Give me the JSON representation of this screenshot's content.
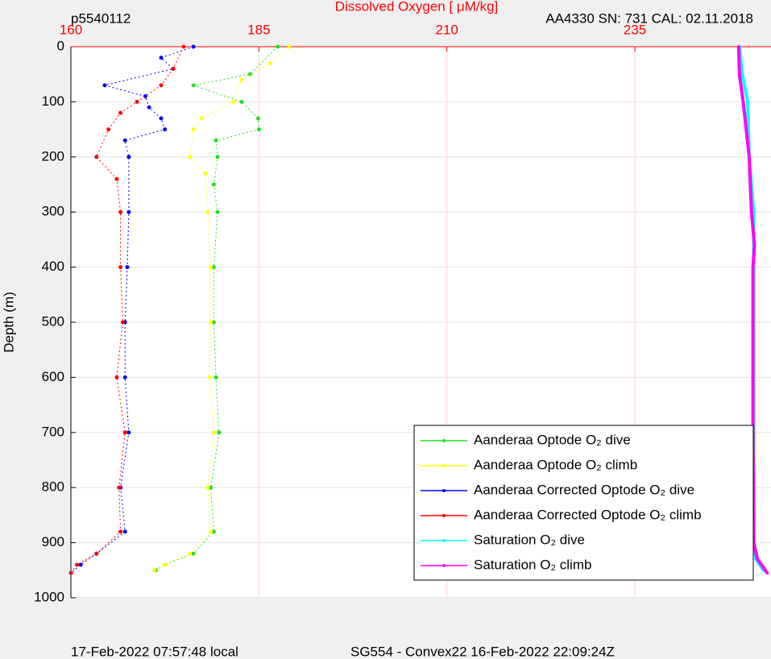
{
  "chart_data": {
    "type": "scatter",
    "title": "Dissolved Oxygen [   μM/kg]",
    "top_left_text": "p5540112",
    "top_right_text": "AA4330   SN: 731  CAL: 02.11.2018",
    "bottom_left_text": "17-Feb-2022 07:57:48 local",
    "bottom_right_text": "SG554 - Convex22 16-Feb-2022 22:09:24Z",
    "y_label": "Depth (m)",
    "xlim": [
      160,
      253.1
    ],
    "xticks": [
      160,
      185,
      210,
      235
    ],
    "ylim": [
      0,
      1000
    ],
    "yticks": [
      0,
      100,
      200,
      300,
      400,
      500,
      600,
      700,
      800,
      900,
      1000
    ],
    "y_reversed": true,
    "grid": true,
    "series": [
      {
        "name": "Aanderaa Optode O₂ dive",
        "color": "#1ee01e",
        "x": [
          187.5,
          183.8,
          176.3,
          182.7,
          184.9,
          185,
          179.3,
          179.5,
          179,
          179.5,
          179,
          179,
          179.3,
          179.7,
          178.6,
          179,
          176.3,
          172.5,
          171.3
        ],
        "y": [
          0,
          50,
          70,
          100,
          130,
          150,
          170,
          200,
          250,
          300,
          400,
          500,
          600,
          700,
          800,
          880,
          920,
          940,
          950
        ]
      },
      {
        "name": "Aanderaa Optode O₂ climb",
        "color": "#ffff00",
        "x": [
          189,
          186.5,
          182.7,
          181.6,
          177.4,
          176.3,
          175.8,
          177.9,
          178.2,
          178.6,
          178.6,
          178.4,
          179,
          178.2,
          178.6,
          175.8,
          172.5,
          171.1
        ],
        "y": [
          0,
          30,
          60,
          100,
          130,
          150,
          200,
          230,
          300,
          400,
          500,
          600,
          700,
          800,
          880,
          920,
          940,
          950
        ]
      },
      {
        "name": "Aanderaa Corrected Optode O₂ dive",
        "color": "#0000ff",
        "x": [
          176.3,
          172,
          173.6,
          164.5,
          169.9,
          170.4,
          172,
          172.5,
          167.2,
          167.7,
          167.7,
          167.5,
          167.2,
          167.2,
          167.7,
          166.6,
          167.2,
          163.4,
          161.3,
          160
        ],
        "y": [
          0,
          20,
          40,
          70,
          90,
          110,
          130,
          150,
          170,
          200,
          300,
          400,
          500,
          600,
          700,
          800,
          880,
          920,
          940,
          955
        ]
      },
      {
        "name": "Aanderaa Corrected Optode O₂ climb",
        "color": "#ff0000",
        "x": [
          175,
          173.6,
          172,
          168.8,
          166.6,
          165,
          163.4,
          166.1,
          166.6,
          166.6,
          166.9,
          166.1,
          167.2,
          166.4,
          166.6,
          163.4,
          160.8,
          160
        ],
        "y": [
          0,
          40,
          70,
          100,
          120,
          150,
          200,
          240,
          300,
          400,
          500,
          600,
          700,
          800,
          880,
          920,
          940,
          955
        ]
      },
      {
        "name": "Saturation O₂ dive",
        "color": "#00ffff",
        "x": [
          248.9,
          249.3,
          250,
          250.2,
          250.8,
          250.8,
          250.8,
          250.8,
          250.8,
          251.1,
          252.1
        ],
        "y": [
          0,
          50,
          100,
          200,
          300,
          400,
          500,
          700,
          900,
          930,
          950
        ]
      },
      {
        "name": "Saturation O₂ climb",
        "color": "#ff00ff",
        "x": [
          248.8,
          248.9,
          249.4,
          250.2,
          250.5,
          250.9,
          250.7,
          250.7,
          250.7,
          250.7,
          250.8,
          251.3,
          252.1,
          252.6
        ],
        "y": [
          0,
          50,
          100,
          200,
          300,
          360,
          400,
          500,
          600,
          700,
          900,
          930,
          945,
          955
        ]
      }
    ]
  }
}
